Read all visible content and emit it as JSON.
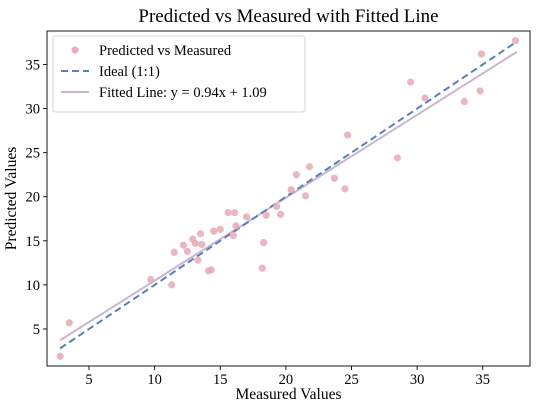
{
  "chart_data": {
    "type": "scatter",
    "title": "Predicted vs Measured with Fitted Line",
    "xlabel": "Measured Values",
    "ylabel": "Predicted Values",
    "xlim": [
      1.8,
      38.6
    ],
    "ylim": [
      0.8,
      38.8
    ],
    "xticks": [
      5,
      10,
      15,
      20,
      25,
      30,
      35
    ],
    "yticks": [
      5,
      10,
      15,
      20,
      25,
      30,
      35
    ],
    "grid": false,
    "legend_position": "top-left",
    "series": [
      {
        "name": "Predicted vs Measured",
        "kind": "scatter",
        "color": "#e8aeb9",
        "points": [
          [
            2.8,
            1.9
          ],
          [
            3.5,
            5.7
          ],
          [
            9.7,
            10.6
          ],
          [
            11.3,
            10.0
          ],
          [
            11.5,
            13.7
          ],
          [
            12.2,
            14.5
          ],
          [
            12.5,
            13.8
          ],
          [
            12.9,
            15.2
          ],
          [
            13.1,
            14.7
          ],
          [
            13.3,
            12.8
          ],
          [
            13.5,
            15.8
          ],
          [
            13.6,
            14.6
          ],
          [
            14.1,
            11.6
          ],
          [
            14.3,
            11.7
          ],
          [
            14.5,
            16.1
          ],
          [
            15.0,
            16.3
          ],
          [
            15.6,
            18.2
          ],
          [
            16.0,
            15.6
          ],
          [
            16.1,
            18.2
          ],
          [
            16.2,
            16.7
          ],
          [
            17.0,
            17.7
          ],
          [
            18.2,
            11.9
          ],
          [
            18.3,
            14.8
          ],
          [
            18.5,
            17.9
          ],
          [
            19.3,
            18.9
          ],
          [
            19.6,
            18.0
          ],
          [
            20.4,
            20.8
          ],
          [
            20.8,
            22.5
          ],
          [
            21.5,
            20.1
          ],
          [
            21.8,
            23.4
          ],
          [
            23.7,
            22.1
          ],
          [
            24.5,
            20.9
          ],
          [
            24.7,
            27.0
          ],
          [
            28.5,
            24.4
          ],
          [
            29.5,
            33.0
          ],
          [
            30.6,
            31.2
          ],
          [
            33.6,
            30.8
          ],
          [
            34.8,
            32.0
          ],
          [
            34.9,
            36.2
          ],
          [
            37.5,
            37.7
          ]
        ]
      },
      {
        "name": "Ideal (1:1)",
        "kind": "line",
        "style": "dashed",
        "color": "#5b7fb8",
        "x": [
          2.8,
          37.6
        ],
        "y": [
          2.8,
          37.6
        ]
      },
      {
        "name": "Fitted Line: y = 0.94x + 1.09",
        "kind": "line",
        "style": "solid",
        "color": "#c9b7d2",
        "slope": 0.94,
        "intercept": 1.09,
        "x": [
          2.8,
          37.6
        ]
      }
    ]
  }
}
